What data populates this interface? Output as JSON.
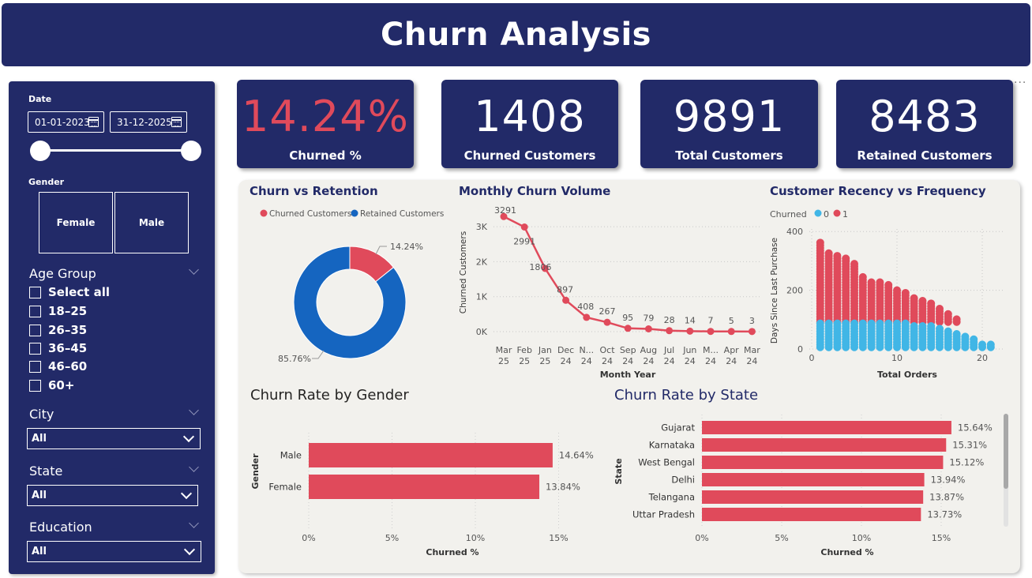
{
  "header": {
    "title": "Churn Analysis"
  },
  "filters": {
    "date": {
      "label": "Date",
      "start": "01-01-2023",
      "end": "31-12-2025"
    },
    "gender": {
      "label": "Gender",
      "options": [
        "Female",
        "Male"
      ]
    },
    "age_group": {
      "label": "Age Group",
      "items": [
        "Select all",
        "18–25",
        "26–35",
        "36–45",
        "46–60",
        "60+"
      ]
    },
    "city": {
      "label": "City",
      "value": "All"
    },
    "state": {
      "label": "State",
      "value": "All"
    },
    "education": {
      "label": "Education",
      "value": "All"
    }
  },
  "kpis": [
    {
      "value": "14.24%",
      "label": "Churned %",
      "color": "#e04a5b"
    },
    {
      "value": "1408",
      "label": "Churned Customers",
      "color": "#ffffff"
    },
    {
      "value": "9891",
      "label": "Total Customers",
      "color": "#ffffff"
    },
    {
      "value": "8483",
      "label": "Retained Customers",
      "color": "#ffffff"
    }
  ],
  "more_options": "···",
  "colors": {
    "navy": "#222a68",
    "churn_red": "#e04a5b",
    "retained_blue": "#1565c0",
    "cyan": "#41b6e6"
  },
  "chart_data": [
    {
      "type": "pie",
      "title": "Churn vs Retention",
      "legend": [
        "Churned Customers",
        "Retained Customers"
      ],
      "legend_position": "top",
      "slices": [
        {
          "name": "Churned Customers",
          "value": 14.24,
          "label": "14.24%"
        },
        {
          "name": "Retained Customers",
          "value": 85.76,
          "label": "85.76%"
        }
      ]
    },
    {
      "type": "line",
      "title": "Monthly Churn Volume",
      "xlabel": "Month Year",
      "ylabel": "Churned Customers",
      "categories": [
        [
          "Mar",
          "25"
        ],
        [
          "Feb",
          "25"
        ],
        [
          "Jan",
          "25"
        ],
        [
          "Dec",
          "24"
        ],
        [
          "N...",
          "24"
        ],
        [
          "Oct",
          "24"
        ],
        [
          "Sep",
          "24"
        ],
        [
          "Aug",
          "24"
        ],
        [
          "Jul",
          "24"
        ],
        [
          "Jun",
          "24"
        ],
        [
          "M...",
          "24"
        ],
        [
          "Apr",
          "24"
        ],
        [
          "Mar",
          "24"
        ]
      ],
      "values": [
        3291,
        2991,
        1806,
        897,
        408,
        267,
        95,
        79,
        28,
        14,
        7,
        5,
        3
      ],
      "yticks": [
        "0K",
        "1K",
        "2K",
        "3K"
      ],
      "ylim": [
        0,
        3300
      ],
      "grid": true
    },
    {
      "type": "scatter",
      "title": "Customer Recency vs Frequency",
      "legend_title": "Churned",
      "legend": [
        "0",
        "1"
      ],
      "legend_position": "top-left",
      "xlabel": "Total Orders",
      "ylabel": "Days Since Last Purchase",
      "xticks": [
        "0",
        "10",
        "20"
      ],
      "yticks": [
        "0",
        "200",
        "400"
      ],
      "xlim": [
        0,
        22
      ],
      "ylim": [
        0,
        400
      ],
      "grid": true,
      "series": [
        {
          "name": "0",
          "x_range": [
            1,
            21
          ],
          "y_max": 90,
          "color": "#41b6e6"
        },
        {
          "name": "1",
          "x_range": [
            1,
            17
          ],
          "y_min": 90,
          "y_max": 365,
          "color": "#e04a5b"
        }
      ]
    },
    {
      "type": "bar",
      "title": "Churn Rate by Gender",
      "xlabel": "Churned %",
      "ylabel": "Gender",
      "categories": [
        "Male",
        "Female"
      ],
      "values": [
        14.64,
        13.84
      ],
      "labels": [
        "14.64%",
        "13.84%"
      ],
      "xticks": [
        "0%",
        "5%",
        "10%",
        "15%"
      ],
      "xlim": [
        0,
        15
      ]
    },
    {
      "type": "bar",
      "title": "Churn Rate by State",
      "xlabel": "Churned %",
      "ylabel": "State",
      "categories": [
        "Gujarat",
        "Karnataka",
        "West Bengal",
        "Delhi",
        "Telangana",
        "Uttar Pradesh"
      ],
      "values": [
        15.64,
        15.31,
        15.12,
        13.94,
        13.87,
        13.73
      ],
      "labels": [
        "15.64%",
        "15.31%",
        "15.12%",
        "13.94%",
        "13.87%",
        "13.73%"
      ],
      "xticks": [
        "0%",
        "5%",
        "10%",
        "15%"
      ],
      "xlim": [
        0,
        15
      ]
    }
  ]
}
